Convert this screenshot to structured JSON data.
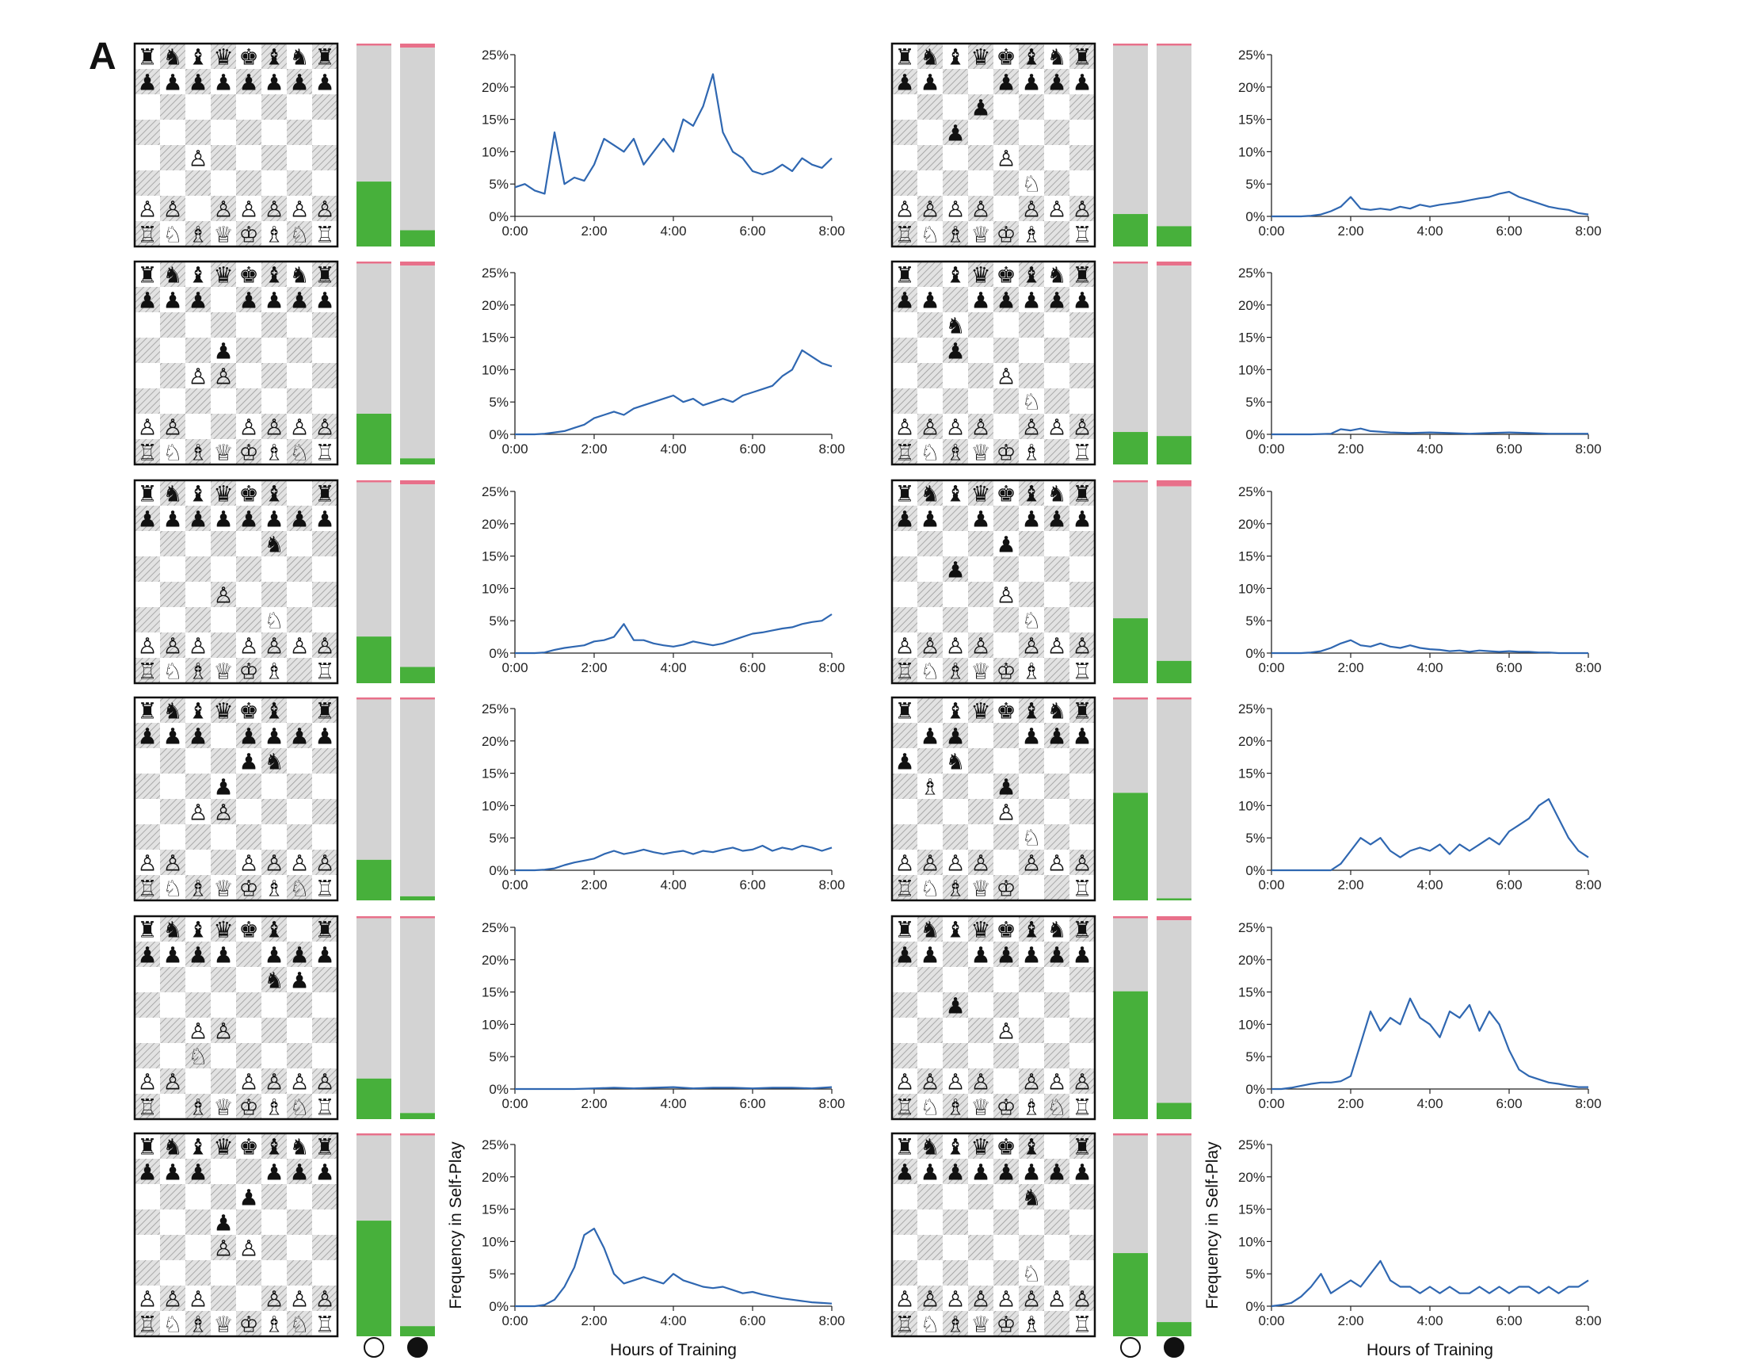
{
  "panel_label": "A",
  "colors": {
    "line": "#2f67b1",
    "bar_win": "#47b03b",
    "bar_draw": "#d3d3d3",
    "bar_loss": "#e8708a",
    "board_light": "#ffffff",
    "board_dark": "#c8c8c8",
    "frame": "#111111"
  },
  "legend": {
    "icons": [
      "white-circle-icon",
      "black-circle-icon"
    ]
  },
  "columns": [
    {
      "xlabel": "Hours of Training",
      "ylabel": "Frequency in Self-Play"
    },
    {
      "xlabel": "Hours of Training",
      "ylabel": "Frequency in Self-Play"
    }
  ],
  "chart_data": [
    {
      "type": "line",
      "x_ticks": [
        "0:00",
        "2:00",
        "4:00",
        "6:00",
        "8:00"
      ],
      "y_ticks": [
        "0%",
        "5%",
        "10%",
        "15%",
        "20%",
        "25%"
      ],
      "xlim": [
        0,
        8
      ],
      "ylim": [
        0,
        25
      ],
      "board": [
        "rnbqkbnr",
        "pppppppp",
        "........",
        "........",
        "..P.....",
        "........",
        "PP.PPPPP",
        "RNBQKBNR"
      ],
      "bars": {
        "white": {
          "win": 0.32,
          "draw": 0.67,
          "loss": 0.01
        },
        "black": {
          "win": 0.08,
          "draw": 0.9,
          "loss": 0.02
        }
      },
      "x": [
        0,
        0.25,
        0.5,
        0.75,
        1,
        1.25,
        1.5,
        1.75,
        2,
        2.25,
        2.5,
        2.75,
        3,
        3.25,
        3.5,
        3.75,
        4,
        4.25,
        4.5,
        4.75,
        5,
        5.25,
        5.5,
        5.75,
        6,
        6.25,
        6.5,
        6.75,
        7,
        7.25,
        7.5,
        7.75,
        8
      ],
      "y": [
        4.5,
        5,
        4,
        3.5,
        13,
        5,
        6,
        5.5,
        8,
        12,
        11,
        10,
        12,
        8,
        10,
        12,
        10,
        15,
        14,
        17,
        22,
        13,
        10,
        9,
        7,
        6.5,
        7,
        8,
        7,
        9,
        8,
        7.5,
        9
      ]
    },
    {
      "type": "line",
      "x_ticks": [
        "0:00",
        "2:00",
        "4:00",
        "6:00",
        "8:00"
      ],
      "y_ticks": [
        "0%",
        "5%",
        "10%",
        "15%",
        "20%",
        "25%"
      ],
      "xlim": [
        0,
        8
      ],
      "ylim": [
        0,
        25
      ],
      "board": [
        "rnbqkbnr",
        "ppp.pppp",
        "........",
        "...p....",
        "..PP....",
        "........",
        "PP..PPPP",
        "RNBQKBNR"
      ],
      "bars": {
        "white": {
          "win": 0.25,
          "draw": 0.74,
          "loss": 0.01
        },
        "black": {
          "win": 0.03,
          "draw": 0.95,
          "loss": 0.02
        }
      },
      "x": [
        0,
        0.25,
        0.5,
        0.75,
        1,
        1.25,
        1.5,
        1.75,
        2,
        2.25,
        2.5,
        2.75,
        3,
        3.25,
        3.5,
        3.75,
        4,
        4.25,
        4.5,
        4.75,
        5,
        5.25,
        5.5,
        5.75,
        6,
        6.25,
        6.5,
        6.75,
        7,
        7.25,
        7.5,
        7.75,
        8
      ],
      "y": [
        0,
        0,
        0,
        0.1,
        0.3,
        0.5,
        1,
        1.5,
        2.5,
        3,
        3.5,
        3,
        4,
        4.5,
        5,
        5.5,
        6,
        5,
        5.5,
        4.5,
        5,
        5.5,
        5,
        6,
        6.5,
        7,
        7.5,
        9,
        10,
        13,
        12,
        11,
        10.5
      ]
    },
    {
      "type": "line",
      "x_ticks": [
        "0:00",
        "2:00",
        "4:00",
        "6:00",
        "8:00"
      ],
      "y_ticks": [
        "0%",
        "5%",
        "10%",
        "15%",
        "20%",
        "25%"
      ],
      "xlim": [
        0,
        8
      ],
      "ylim": [
        0,
        25
      ],
      "board": [
        "rnbqkb.r",
        "pppppppp",
        ".....n..",
        "........",
        "...P....",
        ".....N..",
        "PPP.PPPP",
        "RNBQKB.R"
      ],
      "bars": {
        "white": {
          "win": 0.23,
          "draw": 0.76,
          "loss": 0.01
        },
        "black": {
          "win": 0.08,
          "draw": 0.9,
          "loss": 0.02
        }
      },
      "x": [
        0,
        0.25,
        0.5,
        0.75,
        1,
        1.25,
        1.5,
        1.75,
        2,
        2.25,
        2.5,
        2.75,
        3,
        3.25,
        3.5,
        3.75,
        4,
        4.25,
        4.5,
        4.75,
        5,
        5.25,
        5.5,
        5.75,
        6,
        6.25,
        6.5,
        6.75,
        7,
        7.25,
        7.5,
        7.75,
        8
      ],
      "y": [
        0,
        0,
        0,
        0.1,
        0.5,
        0.8,
        1,
        1.2,
        1.8,
        2,
        2.5,
        4.5,
        2,
        2,
        1.5,
        1.2,
        1,
        1.3,
        1.8,
        1.5,
        1.2,
        1.5,
        2,
        2.5,
        3,
        3.2,
        3.5,
        3.8,
        4,
        4.5,
        4.8,
        5,
        6
      ]
    },
    {
      "type": "line",
      "x_ticks": [
        "0:00",
        "2:00",
        "4:00",
        "6:00",
        "8:00"
      ],
      "y_ticks": [
        "0%",
        "5%",
        "10%",
        "15%",
        "20%",
        "25%"
      ],
      "xlim": [
        0,
        8
      ],
      "ylim": [
        0,
        25
      ],
      "board": [
        "rnbqkb.r",
        "ppp.pppp",
        "....pn..",
        "...p....",
        "..PP....",
        "........",
        "PP..PPPP",
        "RNBQKBNR"
      ],
      "bars": {
        "white": {
          "win": 0.2,
          "draw": 0.79,
          "loss": 0.01
        },
        "black": {
          "win": 0.02,
          "draw": 0.97,
          "loss": 0.01
        }
      },
      "x": [
        0,
        0.25,
        0.5,
        0.75,
        1,
        1.25,
        1.5,
        1.75,
        2,
        2.25,
        2.5,
        2.75,
        3,
        3.25,
        3.5,
        3.75,
        4,
        4.25,
        4.5,
        4.75,
        5,
        5.25,
        5.5,
        5.75,
        6,
        6.25,
        6.5,
        6.75,
        7,
        7.25,
        7.5,
        7.75,
        8
      ],
      "y": [
        0,
        0,
        0,
        0.1,
        0.3,
        0.8,
        1.2,
        1.5,
        1.8,
        2.5,
        3,
        2.5,
        2.8,
        3.2,
        2.8,
        2.5,
        2.8,
        3,
        2.5,
        3,
        2.8,
        3.2,
        3.5,
        3,
        3.2,
        3.8,
        3,
        3.5,
        3.2,
        3.8,
        3.5,
        3,
        3.5
      ]
    },
    {
      "type": "line",
      "x_ticks": [
        "0:00",
        "2:00",
        "4:00",
        "6:00",
        "8:00"
      ],
      "y_ticks": [
        "0%",
        "5%",
        "10%",
        "15%",
        "20%",
        "25%"
      ],
      "xlim": [
        0,
        8
      ],
      "ylim": [
        0,
        25
      ],
      "board": [
        "rnbqkb.r",
        "pppp.ppp",
        ".....np.",
        "........",
        "..PP....",
        "..N.....",
        "PP..PPPP",
        "R.BQKBNR"
      ],
      "bars": {
        "white": {
          "win": 0.2,
          "draw": 0.79,
          "loss": 0.01
        },
        "black": {
          "win": 0.03,
          "draw": 0.96,
          "loss": 0.01
        }
      },
      "x": [
        0,
        0.5,
        1,
        1.5,
        2,
        2.5,
        3,
        3.5,
        4,
        4.5,
        5,
        5.5,
        6,
        6.5,
        7,
        7.5,
        8
      ],
      "y": [
        0,
        0,
        0,
        0,
        0.1,
        0.2,
        0.1,
        0.2,
        0.3,
        0.1,
        0.2,
        0.2,
        0.1,
        0.2,
        0.2,
        0.1,
        0.3
      ]
    },
    {
      "type": "line",
      "x_ticks": [
        "0:00",
        "2:00",
        "4:00",
        "6:00",
        "8:00"
      ],
      "y_ticks": [
        "0%",
        "5%",
        "10%",
        "15%",
        "20%",
        "25%"
      ],
      "xlim": [
        0,
        8
      ],
      "ylim": [
        0,
        25
      ],
      "board": [
        "rnbqkbnr",
        "ppp..ppp",
        "....p...",
        "...p....",
        "...PP...",
        "........",
        "PPP..PPP",
        "RNBQKBNR"
      ],
      "bars": {
        "white": {
          "win": 0.57,
          "draw": 0.42,
          "loss": 0.01
        },
        "black": {
          "win": 0.05,
          "draw": 0.94,
          "loss": 0.01
        }
      },
      "x": [
        0,
        0.25,
        0.5,
        0.75,
        1,
        1.25,
        1.5,
        1.75,
        2,
        2.25,
        2.5,
        2.75,
        3,
        3.25,
        3.5,
        3.75,
        4,
        4.25,
        4.5,
        4.75,
        5,
        5.25,
        5.5,
        5.75,
        6,
        6.25,
        6.5,
        6.75,
        7,
        7.25,
        7.5,
        7.75,
        8
      ],
      "y": [
        0,
        0,
        0,
        0.2,
        1,
        3,
        6,
        11,
        12,
        9,
        5,
        3.5,
        4,
        4.5,
        4,
        3.5,
        5,
        4,
        3.5,
        3,
        2.8,
        3,
        2.5,
        2,
        2.2,
        1.8,
        1.5,
        1.2,
        1,
        0.8,
        0.6,
        0.5,
        0.4
      ]
    },
    {
      "type": "line",
      "x_ticks": [
        "0:00",
        "2:00",
        "4:00",
        "6:00",
        "8:00"
      ],
      "y_ticks": [
        "0%",
        "5%",
        "10%",
        "15%",
        "20%",
        "25%"
      ],
      "xlim": [
        0,
        8
      ],
      "ylim": [
        0,
        25
      ],
      "board": [
        "rnbqkbnr",
        "pp..pppp",
        "...p....",
        "..p.....",
        "....P...",
        ".....N..",
        "PPPP.PPP",
        "RNBQKB.R"
      ],
      "bars": {
        "white": {
          "win": 0.16,
          "draw": 0.83,
          "loss": 0.01
        },
        "black": {
          "win": 0.1,
          "draw": 0.89,
          "loss": 0.01
        }
      },
      "x": [
        0,
        0.25,
        0.5,
        0.75,
        1,
        1.25,
        1.5,
        1.75,
        2,
        2.25,
        2.5,
        2.75,
        3,
        3.25,
        3.5,
        3.75,
        4,
        4.25,
        4.5,
        4.75,
        5,
        5.25,
        5.5,
        5.75,
        6,
        6.25,
        6.5,
        6.75,
        7,
        7.25,
        7.5,
        7.75,
        8
      ],
      "y": [
        0,
        0,
        0,
        0,
        0.1,
        0.3,
        0.8,
        1.5,
        3,
        1.2,
        1,
        1.2,
        1,
        1.5,
        1.2,
        1.8,
        1.5,
        1.8,
        2,
        2.2,
        2.5,
        2.8,
        3,
        3.5,
        3.8,
        3,
        2.5,
        2,
        1.5,
        1.2,
        1,
        0.5,
        0.3
      ]
    },
    {
      "type": "line",
      "x_ticks": [
        "0:00",
        "2:00",
        "4:00",
        "6:00",
        "8:00"
      ],
      "y_ticks": [
        "0%",
        "5%",
        "10%",
        "15%",
        "20%",
        "25%"
      ],
      "xlim": [
        0,
        8
      ],
      "ylim": [
        0,
        25
      ],
      "board": [
        "r.bqkbnr",
        "pp.ppppp",
        "..n.....",
        "..p.....",
        "....P...",
        ".....N..",
        "PPPP.PPP",
        "RNBQKB.R"
      ],
      "bars": {
        "white": {
          "win": 0.16,
          "draw": 0.83,
          "loss": 0.01
        },
        "black": {
          "win": 0.14,
          "draw": 0.84,
          "loss": 0.02
        }
      },
      "x": [
        0,
        0.5,
        1,
        1.5,
        1.75,
        2,
        2.25,
        2.5,
        3,
        3.5,
        4,
        4.5,
        5,
        5.5,
        6,
        6.5,
        7,
        7.5,
        8
      ],
      "y": [
        0,
        0,
        0,
        0.1,
        0.8,
        0.6,
        0.9,
        0.5,
        0.3,
        0.2,
        0.3,
        0.2,
        0.1,
        0.2,
        0.3,
        0.2,
        0.1,
        0.1,
        0.1
      ]
    },
    {
      "type": "line",
      "x_ticks": [
        "0:00",
        "2:00",
        "4:00",
        "6:00",
        "8:00"
      ],
      "y_ticks": [
        "0%",
        "5%",
        "10%",
        "15%",
        "20%",
        "25%"
      ],
      "xlim": [
        0,
        8
      ],
      "ylim": [
        0,
        25
      ],
      "board": [
        "rnbqkbnr",
        "pp.p.ppp",
        "....p...",
        "..p.....",
        "....P...",
        ".....N..",
        "PPPP.PPP",
        "RNBQKB.R"
      ],
      "bars": {
        "white": {
          "win": 0.32,
          "draw": 0.67,
          "loss": 0.01
        },
        "black": {
          "win": 0.11,
          "draw": 0.86,
          "loss": 0.03
        }
      },
      "x": [
        0,
        0.25,
        0.5,
        0.75,
        1,
        1.25,
        1.5,
        1.75,
        2,
        2.25,
        2.5,
        2.75,
        3,
        3.25,
        3.5,
        3.75,
        4,
        4.25,
        4.5,
        4.75,
        5,
        5.25,
        5.5,
        5.75,
        6,
        6.25,
        6.5,
        6.75,
        7,
        7.25,
        7.5,
        7.75,
        8
      ],
      "y": [
        0,
        0,
        0,
        0,
        0.1,
        0.3,
        0.8,
        1.5,
        2,
        1.2,
        1,
        1.5,
        1,
        0.8,
        1.2,
        0.8,
        0.6,
        0.5,
        0.3,
        0.4,
        0.2,
        0.4,
        0.3,
        0.2,
        0.3,
        0.2,
        0.2,
        0.1,
        0.1,
        0,
        0,
        0,
        0
      ]
    },
    {
      "type": "line",
      "x_ticks": [
        "0:00",
        "2:00",
        "4:00",
        "6:00",
        "8:00"
      ],
      "y_ticks": [
        "0%",
        "5%",
        "10%",
        "15%",
        "20%",
        "25%"
      ],
      "xlim": [
        0,
        8
      ],
      "ylim": [
        0,
        25
      ],
      "board": [
        "r.bqkbnr",
        ".pp..ppp",
        "p.n.....",
        ".B..p...",
        "....P...",
        ".....N..",
        "PPPP.PPP",
        "RNBQK..R"
      ],
      "bars": {
        "white": {
          "win": 0.53,
          "draw": 0.46,
          "loss": 0.01
        },
        "black": {
          "win": 0.01,
          "draw": 0.98,
          "loss": 0.01
        }
      },
      "x": [
        0,
        0.25,
        0.5,
        0.75,
        1,
        1.25,
        1.5,
        1.75,
        2,
        2.25,
        2.5,
        2.75,
        3,
        3.25,
        3.5,
        3.75,
        4,
        4.25,
        4.5,
        4.75,
        5,
        5.25,
        5.5,
        5.75,
        6,
        6.25,
        6.5,
        6.75,
        7,
        7.25,
        7.5,
        7.75,
        8
      ],
      "y": [
        0,
        0,
        0,
        0,
        0,
        0,
        0,
        1,
        3,
        5,
        4,
        5,
        3,
        2,
        3,
        3.5,
        3,
        4,
        2.5,
        4,
        3,
        4,
        5,
        4,
        6,
        7,
        8,
        10,
        11,
        8,
        5,
        3,
        2
      ]
    },
    {
      "type": "line",
      "x_ticks": [
        "0:00",
        "2:00",
        "4:00",
        "6:00",
        "8:00"
      ],
      "y_ticks": [
        "0%",
        "5%",
        "10%",
        "15%",
        "20%",
        "25%"
      ],
      "xlim": [
        0,
        8
      ],
      "ylim": [
        0,
        25
      ],
      "board": [
        "rnbqkbnr",
        "pp.ppppp",
        "........",
        "..p.....",
        "....P...",
        "........",
        "PPPP.PPP",
        "RNBQKBNR"
      ],
      "bars": {
        "white": {
          "win": 0.63,
          "draw": 0.36,
          "loss": 0.01
        },
        "black": {
          "win": 0.08,
          "draw": 0.9,
          "loss": 0.02
        }
      },
      "x": [
        0,
        0.25,
        0.5,
        0.75,
        1,
        1.25,
        1.5,
        1.75,
        2,
        2.25,
        2.5,
        2.75,
        3,
        3.25,
        3.5,
        3.75,
        4,
        4.25,
        4.5,
        4.75,
        5,
        5.25,
        5.5,
        5.75,
        6,
        6.25,
        6.5,
        6.75,
        7,
        7.25,
        7.5,
        7.75,
        8
      ],
      "y": [
        0,
        0,
        0.2,
        0.5,
        0.8,
        1,
        1,
        1.2,
        2,
        7,
        12,
        9,
        11,
        10,
        14,
        11,
        10,
        8,
        12,
        11,
        13,
        9,
        12,
        10,
        6,
        3,
        2,
        1.5,
        1,
        0.8,
        0.5,
        0.3,
        0.3
      ]
    },
    {
      "type": "line",
      "x_ticks": [
        "0:00",
        "2:00",
        "4:00",
        "6:00",
        "8:00"
      ],
      "y_ticks": [
        "0%",
        "5%",
        "10%",
        "15%",
        "20%",
        "25%"
      ],
      "xlim": [
        0,
        8
      ],
      "ylim": [
        0,
        25
      ],
      "board": [
        "rnbqkb.r",
        "pppppppp",
        ".....n..",
        "........",
        "........",
        ".....N..",
        "PPPPPPPP",
        "RNBQKB.R"
      ],
      "bars": {
        "white": {
          "win": 0.41,
          "draw": 0.58,
          "loss": 0.01
        },
        "black": {
          "win": 0.07,
          "draw": 0.92,
          "loss": 0.01
        }
      },
      "x": [
        0,
        0.25,
        0.5,
        0.75,
        1,
        1.25,
        1.5,
        1.75,
        2,
        2.25,
        2.5,
        2.75,
        3,
        3.25,
        3.5,
        3.75,
        4,
        4.25,
        4.5,
        4.75,
        5,
        5.25,
        5.5,
        5.75,
        6,
        6.25,
        6.5,
        6.75,
        7,
        7.25,
        7.5,
        7.75,
        8
      ],
      "y": [
        0,
        0.2,
        0.5,
        1.5,
        3,
        5,
        2,
        3,
        4,
        3,
        5,
        7,
        4,
        3,
        3,
        2,
        3,
        2,
        3,
        2,
        2,
        3,
        2,
        3,
        2,
        3,
        3,
        2,
        3,
        2,
        3,
        3,
        4
      ]
    }
  ]
}
